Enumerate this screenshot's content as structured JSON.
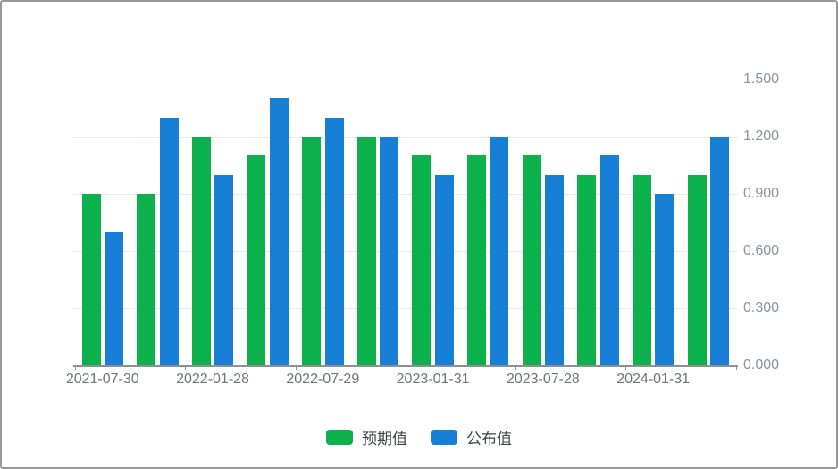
{
  "chart_data": {
    "type": "bar",
    "title": "",
    "xlabel": "",
    "ylabel": "",
    "categories": [
      "2021-07-30",
      "",
      "2022-01-28",
      "",
      "2022-07-29",
      "",
      "2023-01-31",
      "",
      "2023-07-28",
      "",
      "2024-01-31",
      ""
    ],
    "series": [
      {
        "name": "预期值",
        "color": "#0db14b",
        "values": [
          0.9,
          0.9,
          1.2,
          1.1,
          1.2,
          1.2,
          1.1,
          1.1,
          1.1,
          1.0,
          1.0,
          1.0
        ]
      },
      {
        "name": "公布值",
        "color": "#1780d6",
        "values": [
          0.7,
          1.3,
          1.0,
          1.4,
          1.3,
          1.2,
          1.0,
          1.2,
          1.0,
          1.1,
          0.9,
          1.2
        ]
      }
    ],
    "y_ticks": [
      "1.500",
      "1.200",
      "0.900",
      "0.600",
      "0.300",
      "0.000"
    ],
    "ylim": [
      0,
      1.5
    ],
    "y_axis_position": "right",
    "grid": true,
    "legend_position": "bottom"
  },
  "legend": {
    "items": [
      {
        "label": "预期值",
        "color": "#0db14b"
      },
      {
        "label": "公布值",
        "color": "#1780d6"
      }
    ]
  },
  "colors": {
    "expected_green": "#0db14b",
    "announced_blue": "#1780d6",
    "gridline": "#e7eaf3",
    "axis_line": "#8f8f8f",
    "y_label_text": "#8e939b",
    "x_label_text": "#6f7378",
    "legend_text": "#3f4347",
    "frame_border": "#999999",
    "background": "#ffffff"
  }
}
